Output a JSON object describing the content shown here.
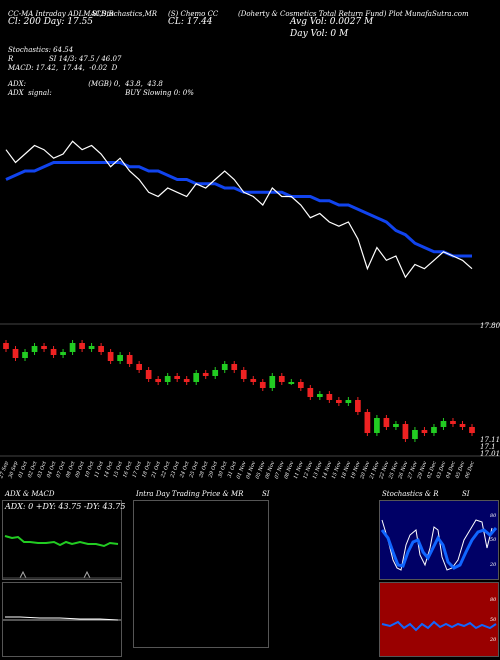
{
  "header": {
    "h1": "CC-MA Intraday ADLMACD,R",
    "h2": "SI,Stochastics,MR",
    "h3": "(S) Chemo CC",
    "h4": "(Doherty & Cosmetics Total Return Fund) Plot MunafaSutra.com",
    "h5": "Cl: 200  Day: 17.55",
    "h6": "CL: 17.44",
    "h7": "Avg Vol: 0.0027 M",
    "h8": "Day Vol: 0   M"
  },
  "info": {
    "line1": "Stochastics: 64.54",
    "line2": "R                SI 14/3: 47.5 / 46.07",
    "line3": "MACD: 17.42,  17.44,  -0.02  D",
    "line4": "ADX:                            (MGB) 0,  43.8,  43.8",
    "line5": "ADX  signal:                                 BUY Slowing 0: 0%"
  },
  "price_axis": {
    "top": "17.80",
    "bottom_a": "17.11",
    "bottom_b": "17.1",
    "bottom_c": "17.01"
  },
  "panels": {
    "adx_title": "ADX  & MACD",
    "adx_values": "ADX: 0  +DY: 43.75  -DY: 43.75",
    "intraday_title": "Intra  Day  Trading  Price  &  MR",
    "intraday_si": "SI",
    "stoch_title": "Stochastics  &  R",
    "stoch_si": "SI",
    "stoch_ticks": [
      "80",
      "50",
      "20"
    ],
    "si_ticks": [
      "80",
      "50",
      "20"
    ]
  },
  "colors": {
    "up": "#22cc22",
    "down": "#ee2222",
    "ma": "#1144ee",
    "rsi_bg": "#990000",
    "stoch_bg": "#000066"
  },
  "chart_data": {
    "type": "candlestick",
    "categories": [
      "27 Sep",
      "30 Sep",
      "01 Oct",
      "02 Oct",
      "03 Oct",
      "04 Oct",
      "07 Oct",
      "08 Oct",
      "09 Oct",
      "10 Oct",
      "11 Oct",
      "14 Oct",
      "15 Oct",
      "16 Oct",
      "17 Oct",
      "18 Oct",
      "21 Oct",
      "22 Oct",
      "23 Oct",
      "24 Oct",
      "25 Oct",
      "28 Oct",
      "29 Oct",
      "30 Oct",
      "31 Oct",
      "01 Nov",
      "04 Nov",
      "05 Nov",
      "06 Nov",
      "07 Nov",
      "08 Nov",
      "11 Nov",
      "12 Nov",
      "13 Nov",
      "14 Nov",
      "15 Nov",
      "18 Nov",
      "19 Nov",
      "20 Nov",
      "21 Nov",
      "22 Nov",
      "25 Nov",
      "26 Nov",
      "27 Nov",
      "29 Nov",
      "02 Dec",
      "03 Dec",
      "04 Dec",
      "05 Dec",
      "06 Dec"
    ],
    "close": [
      17.73,
      17.7,
      17.72,
      17.74,
      17.73,
      17.71,
      17.72,
      17.75,
      17.73,
      17.74,
      17.72,
      17.69,
      17.71,
      17.68,
      17.66,
      17.63,
      17.62,
      17.64,
      17.63,
      17.62,
      17.65,
      17.64,
      17.66,
      17.68,
      17.66,
      17.63,
      17.62,
      17.6,
      17.64,
      17.62,
      17.62,
      17.6,
      17.57,
      17.58,
      17.56,
      17.55,
      17.56,
      17.52,
      17.45,
      17.5,
      17.47,
      17.48,
      17.43,
      17.46,
      17.45,
      17.47,
      17.49,
      17.48,
      17.47,
      17.45
    ],
    "ma": [
      17.66,
      17.67,
      17.68,
      17.68,
      17.69,
      17.7,
      17.7,
      17.7,
      17.7,
      17.7,
      17.7,
      17.7,
      17.7,
      17.69,
      17.69,
      17.68,
      17.68,
      17.67,
      17.66,
      17.66,
      17.65,
      17.65,
      17.65,
      17.64,
      17.64,
      17.63,
      17.63,
      17.63,
      17.63,
      17.63,
      17.62,
      17.62,
      17.62,
      17.61,
      17.61,
      17.6,
      17.6,
      17.59,
      17.58,
      17.57,
      17.56,
      17.54,
      17.53,
      17.51,
      17.5,
      17.49,
      17.49,
      17.48,
      17.48,
      17.48
    ],
    "ylim": [
      17.4,
      17.8
    ]
  }
}
